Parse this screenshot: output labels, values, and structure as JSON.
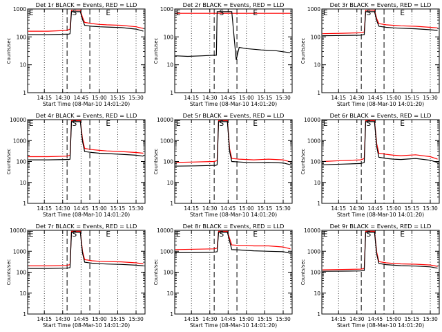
{
  "chart_data": [
    {
      "type": "line",
      "title": "Det 1r BLACK = Events, RED = LLD",
      "xlabel": "Start Time (08-Mar-10 14:01:20)",
      "ylabel": "Counts/sec",
      "y_scale": "log",
      "ylim": [
        1,
        1000
      ],
      "xlim": [
        14.0222,
        15.6222
      ],
      "xticks": [
        "14:15",
        "14:30",
        "14:45",
        "15:00",
        "15:15",
        "15:30"
      ],
      "yticks": [
        "1",
        "10",
        "100",
        "1000"
      ],
      "markers": [
        {
          "label": "E",
          "x": 14.03
        },
        {
          "label": "S",
          "x": 14.62
        },
        {
          "label": "E",
          "x": 15.08
        }
      ],
      "dashed_lines": [
        14.56,
        14.87
      ],
      "series": [
        {
          "color": "#ff0000",
          "x": [
            14.03,
            14.3,
            14.55,
            14.58,
            14.6,
            14.62,
            14.74,
            14.77,
            14.8,
            14.9,
            15.0,
            15.1,
            15.3,
            15.5,
            15.6
          ],
          "y": [
            160,
            160,
            170,
            180,
            190,
            900,
            900,
            500,
            330,
            300,
            280,
            270,
            260,
            230,
            200
          ]
        },
        {
          "color": "#000000",
          "x": [
            14.03,
            14.3,
            14.55,
            14.58,
            14.6,
            14.62,
            14.74,
            14.77,
            14.8,
            14.9,
            15.0,
            15.1,
            15.3,
            15.5,
            15.6
          ],
          "y": [
            120,
            120,
            125,
            125,
            130,
            800,
            800,
            420,
            260,
            240,
            230,
            225,
            215,
            190,
            160
          ]
        }
      ]
    },
    {
      "type": "line",
      "title": "Det 2r BLACK = Events, RED = LLD",
      "xlabel": "Start Time (08-Mar-10 14:01:20)",
      "ylabel": "Counts/sec",
      "y_scale": "log",
      "ylim": [
        1,
        1000
      ],
      "xlim": [
        14.0222,
        15.6222
      ],
      "xticks": [
        "14:15",
        "14:30",
        "14:45",
        "15:00",
        "15:15",
        "15:30"
      ],
      "yticks": [
        "1",
        "10",
        "100",
        "1000"
      ],
      "markers": [
        {
          "label": "E",
          "x": 14.03
        },
        {
          "label": "S",
          "x": 14.62
        },
        {
          "label": "E",
          "x": 15.08
        }
      ],
      "dashed_lines": [
        14.56,
        14.87
      ],
      "series": [
        {
          "color": "#ff0000",
          "x": [
            14.03,
            14.4,
            14.56,
            14.6,
            14.8,
            14.88,
            15.0,
            15.2,
            15.4,
            15.6
          ],
          "y": [
            700,
            700,
            700,
            700,
            700,
            700,
            700,
            700,
            700,
            700
          ]
        },
        {
          "color": "#000000",
          "x": [
            14.03,
            14.2,
            14.4,
            14.55,
            14.59,
            14.6,
            14.8,
            14.86,
            14.9,
            15.0,
            15.2,
            15.4,
            15.6
          ],
          "y": [
            21,
            20,
            21,
            22,
            22,
            800,
            800,
            15,
            42,
            38,
            34,
            32,
            27
          ]
        }
      ]
    },
    {
      "type": "line",
      "title": "Det 3r BLACK = Events, RED = LLD",
      "xlabel": "Start Time (08-Mar-10 14:01:20)",
      "ylabel": "Counts/sec",
      "y_scale": "log",
      "ylim": [
        1,
        1000
      ],
      "xlim": [
        14.0222,
        15.6222
      ],
      "xticks": [
        "14:15",
        "14:30",
        "14:45",
        "15:00",
        "15:15",
        "15:30"
      ],
      "yticks": [
        "1",
        "10",
        "100",
        "1000"
      ],
      "markers": [
        {
          "label": "E",
          "x": 14.03
        },
        {
          "label": "S",
          "x": 14.62
        },
        {
          "label": "E",
          "x": 15.08
        }
      ],
      "dashed_lines": [
        14.56,
        14.87
      ],
      "series": [
        {
          "color": "#ff0000",
          "x": [
            14.03,
            14.3,
            14.55,
            14.58,
            14.6,
            14.62,
            14.74,
            14.77,
            14.8,
            14.9,
            15.0,
            15.1,
            15.3,
            15.5,
            15.6
          ],
          "y": [
            130,
            135,
            140,
            145,
            150,
            900,
            900,
            450,
            300,
            270,
            260,
            250,
            240,
            220,
            210
          ]
        },
        {
          "color": "#000000",
          "x": [
            14.03,
            14.3,
            14.55,
            14.58,
            14.6,
            14.62,
            14.74,
            14.77,
            14.8,
            14.9,
            15.0,
            15.1,
            15.3,
            15.5,
            15.6
          ],
          "y": [
            110,
            112,
            115,
            118,
            120,
            800,
            800,
            380,
            240,
            220,
            210,
            205,
            195,
            180,
            170
          ]
        }
      ]
    },
    {
      "type": "line",
      "title": "Det 4r BLACK = Events, RED = LLD",
      "xlabel": "Start Time (08-Mar-10 14:01:20)",
      "ylabel": "Counts/sec",
      "y_scale": "log",
      "ylim": [
        1,
        10000
      ],
      "xlim": [
        14.0222,
        15.6222
      ],
      "xticks": [
        "14:15",
        "14:30",
        "14:45",
        "15:00",
        "15:15",
        "15:30"
      ],
      "yticks": [
        "1",
        "10",
        "100",
        "1000",
        "10000"
      ],
      "markers": [
        {
          "label": "E",
          "x": 14.03
        },
        {
          "label": "S",
          "x": 14.62
        },
        {
          "label": "E",
          "x": 15.08
        }
      ],
      "dashed_lines": [
        14.56,
        14.87
      ],
      "series": [
        {
          "color": "#ff0000",
          "x": [
            14.03,
            14.3,
            14.55,
            14.58,
            14.6,
            14.62,
            14.74,
            14.77,
            14.8,
            14.9,
            15.0,
            15.1,
            15.3,
            15.5,
            15.6
          ],
          "y": [
            170,
            170,
            180,
            190,
            200,
            9000,
            9000,
            1200,
            420,
            370,
            340,
            320,
            300,
            270,
            250
          ]
        },
        {
          "color": "#000000",
          "x": [
            14.03,
            14.3,
            14.55,
            14.58,
            14.6,
            14.62,
            14.74,
            14.77,
            14.8,
            14.9,
            15.0,
            15.1,
            15.3,
            15.5,
            15.6
          ],
          "y": [
            120,
            120,
            125,
            125,
            130,
            8000,
            8000,
            900,
            300,
            270,
            250,
            240,
            220,
            200,
            180
          ]
        }
      ]
    },
    {
      "type": "line",
      "title": "Det 5r BLACK = Events, RED = LLD",
      "xlabel": "Start Time (08-Mar-10 14:01:20)",
      "ylabel": "Counts/sec",
      "y_scale": "log",
      "ylim": [
        1,
        10000
      ],
      "xlim": [
        14.0222,
        15.6222
      ],
      "xticks": [
        "14:15",
        "14:30",
        "14:45",
        "15:00",
        "15:15",
        "15:30"
      ],
      "yticks": [
        "1",
        "10",
        "100",
        "1000",
        "10000"
      ],
      "markers": [
        {
          "label": "E",
          "x": 14.03
        },
        {
          "label": "S",
          "x": 14.62
        },
        {
          "label": "E",
          "x": 15.08
        }
      ],
      "dashed_lines": [
        14.56,
        14.87
      ],
      "series": [
        {
          "color": "#ff0000",
          "x": [
            14.03,
            14.3,
            14.55,
            14.58,
            14.6,
            14.62,
            14.74,
            14.77,
            14.8,
            14.9,
            15.0,
            15.1,
            15.3,
            15.5,
            15.6
          ],
          "y": [
            90,
            95,
            100,
            105,
            110,
            9000,
            9000,
            400,
            140,
            130,
            125,
            120,
            130,
            120,
            95
          ]
        },
        {
          "color": "#000000",
          "x": [
            14.03,
            14.3,
            14.55,
            14.58,
            14.6,
            14.62,
            14.74,
            14.77,
            14.8,
            14.9,
            15.0,
            15.1,
            15.3,
            15.5,
            15.6
          ],
          "y": [
            60,
            62,
            65,
            65,
            70,
            8000,
            8000,
            300,
            100,
            95,
            90,
            88,
            90,
            85,
            70
          ]
        }
      ]
    },
    {
      "type": "line",
      "title": "Det 6r BLACK = Events, RED = LLD",
      "xlabel": "Start Time (08-Mar-10 14:01:20)",
      "ylabel": "Counts/sec",
      "y_scale": "log",
      "ylim": [
        1,
        10000
      ],
      "xlim": [
        14.0222,
        15.6222
      ],
      "xticks": [
        "14:15",
        "14:30",
        "14:45",
        "15:00",
        "15:15",
        "15:30"
      ],
      "yticks": [
        "1",
        "10",
        "100",
        "1000",
        "10000"
      ],
      "markers": [
        {
          "label": "E",
          "x": 14.03
        },
        {
          "label": "S",
          "x": 14.62
        },
        {
          "label": "E",
          "x": 15.08
        }
      ],
      "dashed_lines": [
        14.56,
        14.87
      ],
      "series": [
        {
          "color": "#ff0000",
          "x": [
            14.03,
            14.3,
            14.55,
            14.58,
            14.6,
            14.62,
            14.74,
            14.77,
            14.8,
            14.9,
            15.0,
            15.1,
            15.3,
            15.5,
            15.6
          ],
          "y": [
            100,
            110,
            120,
            130,
            140,
            9000,
            9000,
            700,
            250,
            220,
            200,
            190,
            210,
            170,
            130
          ]
        },
        {
          "color": "#000000",
          "x": [
            14.03,
            14.3,
            14.55,
            14.58,
            14.6,
            14.62,
            14.74,
            14.77,
            14.8,
            14.9,
            15.0,
            15.1,
            15.3,
            15.5,
            15.6
          ],
          "y": [
            70,
            75,
            80,
            85,
            90,
            8000,
            8000,
            500,
            160,
            140,
            130,
            125,
            140,
            115,
            90
          ]
        }
      ]
    },
    {
      "type": "line",
      "title": "Det 7r BLACK = Events, RED = LLD",
      "xlabel": "Start Time (08-Mar-10 14:01:20)",
      "ylabel": "Counts/sec",
      "y_scale": "log",
      "ylim": [
        1,
        10000
      ],
      "xlim": [
        14.0222,
        15.6222
      ],
      "xticks": [
        "14:15",
        "14:30",
        "14:45",
        "15:00",
        "15:15",
        "15:30"
      ],
      "yticks": [
        "1",
        "10",
        "100",
        "1000",
        "10000"
      ],
      "markers": [
        {
          "label": "E",
          "x": 14.03
        },
        {
          "label": "S",
          "x": 14.62
        },
        {
          "label": "E",
          "x": 15.08
        }
      ],
      "dashed_lines": [
        14.56,
        14.87
      ],
      "series": [
        {
          "color": "#ff0000",
          "x": [
            14.03,
            14.3,
            14.55,
            14.58,
            14.6,
            14.62,
            14.74,
            14.77,
            14.8,
            14.9,
            15.0,
            15.1,
            15.3,
            15.5,
            15.6
          ],
          "y": [
            200,
            200,
            210,
            220,
            230,
            9000,
            9000,
            1000,
            400,
            350,
            330,
            320,
            310,
            280,
            250
          ]
        },
        {
          "color": "#000000",
          "x": [
            14.03,
            14.3,
            14.55,
            14.58,
            14.6,
            14.62,
            14.74,
            14.77,
            14.8,
            14.9,
            15.0,
            15.1,
            15.3,
            15.5,
            15.6
          ],
          "y": [
            150,
            150,
            155,
            160,
            165,
            8000,
            8000,
            800,
            300,
            270,
            255,
            245,
            235,
            215,
            200
          ]
        }
      ]
    },
    {
      "type": "line",
      "title": "Det 8r BLACK = Events, RED = LLD",
      "xlabel": "Start Time (08-Mar-10 14:01:20)",
      "ylabel": "Counts/sec",
      "y_scale": "log",
      "ylim": [
        1,
        10000
      ],
      "xlim": [
        14.0222,
        15.6222
      ],
      "xticks": [
        "14:15",
        "14:30",
        "14:45",
        "15:00",
        "15:15",
        "15:30"
      ],
      "yticks": [
        "1",
        "10",
        "100",
        "1000",
        "10000"
      ],
      "markers": [
        {
          "label": "E",
          "x": 14.03
        },
        {
          "label": "S",
          "x": 14.62
        },
        {
          "label": "E",
          "x": 15.08
        }
      ],
      "dashed_lines": [
        14.56,
        14.87
      ],
      "series": [
        {
          "color": "#ff0000",
          "x": [
            14.03,
            14.3,
            14.55,
            14.58,
            14.6,
            14.62,
            14.74,
            14.77,
            14.8,
            14.9,
            15.0,
            15.1,
            15.3,
            15.5,
            15.6
          ],
          "y": [
            1200,
            1250,
            1300,
            1350,
            1400,
            9000,
            9000,
            4000,
            2000,
            1900,
            1900,
            1800,
            1800,
            1600,
            1300
          ]
        },
        {
          "color": "#000000",
          "x": [
            14.03,
            14.3,
            14.55,
            14.58,
            14.6,
            14.62,
            14.74,
            14.77,
            14.8,
            14.9,
            15.0,
            15.1,
            15.3,
            15.5,
            15.6
          ],
          "y": [
            850,
            870,
            900,
            920,
            950,
            8000,
            8000,
            3000,
            1200,
            1150,
            1100,
            1050,
            1000,
            950,
            800
          ]
        }
      ]
    },
    {
      "type": "line",
      "title": "Det 9r BLACK = Events, RED = LLD",
      "xlabel": "Start Time (08-Mar-10 14:01:20)",
      "ylabel": "Counts/sec",
      "y_scale": "log",
      "ylim": [
        1,
        10000
      ],
      "xlim": [
        14.0222,
        15.6222
      ],
      "xticks": [
        "14:15",
        "14:30",
        "14:45",
        "15:00",
        "15:15",
        "15:30"
      ],
      "yticks": [
        "1",
        "10",
        "100",
        "1000",
        "10000"
      ],
      "markers": [
        {
          "label": "E",
          "x": 14.03
        },
        {
          "label": "S",
          "x": 14.62
        },
        {
          "label": "E",
          "x": 15.08
        }
      ],
      "dashed_lines": [
        14.56,
        14.87
      ],
      "series": [
        {
          "color": "#ff0000",
          "x": [
            14.03,
            14.3,
            14.55,
            14.58,
            14.6,
            14.62,
            14.74,
            14.77,
            14.8,
            14.9,
            15.0,
            15.1,
            15.3,
            15.5,
            15.6
          ],
          "y": [
            130,
            135,
            140,
            145,
            150,
            9000,
            9000,
            900,
            320,
            280,
            260,
            250,
            240,
            220,
            190
          ]
        },
        {
          "color": "#000000",
          "x": [
            14.03,
            14.3,
            14.55,
            14.58,
            14.6,
            14.62,
            14.74,
            14.77,
            14.8,
            14.9,
            15.0,
            15.1,
            15.3,
            15.5,
            15.6
          ],
          "y": [
            110,
            112,
            115,
            118,
            120,
            8000,
            8000,
            700,
            260,
            230,
            215,
            205,
            195,
            180,
            155
          ]
        }
      ]
    }
  ]
}
